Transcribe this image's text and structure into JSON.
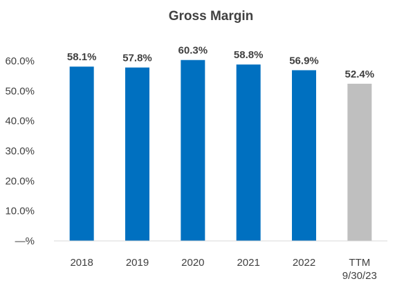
{
  "chart_data": {
    "type": "bar",
    "title": "Gross Margin",
    "xlabel": "",
    "ylabel": "",
    "categories": [
      [
        "2018"
      ],
      [
        "2019"
      ],
      [
        "2020"
      ],
      [
        "2021"
      ],
      [
        "2022"
      ],
      [
        "TTM",
        "9/30/23"
      ]
    ],
    "values": [
      58.1,
      57.8,
      60.3,
      58.8,
      56.9,
      52.4
    ],
    "data_labels": [
      "58.1%",
      "57.8%",
      "60.3%",
      "58.8%",
      "56.9%",
      "52.4%"
    ],
    "bar_colors": [
      "#0070C0",
      "#0070C0",
      "#0070C0",
      "#0070C0",
      "#0070C0",
      "#BFBFBF"
    ],
    "ylim": [
      0,
      60
    ],
    "yticks": [
      0,
      10,
      20,
      30,
      40,
      50,
      60
    ],
    "ytick_labels": [
      "—%",
      "10.0%",
      "20.0%",
      "30.0%",
      "40.0%",
      "50.0%",
      "60.0%"
    ],
    "grid": false,
    "axis_color": "#D9D9D9",
    "text_color": "#404040"
  }
}
